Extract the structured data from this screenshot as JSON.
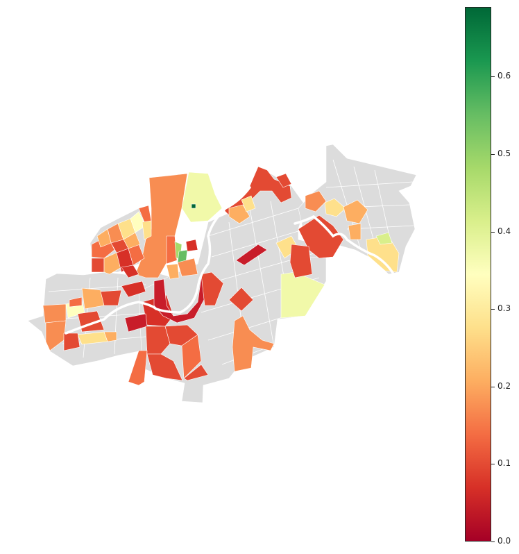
{
  "map": {
    "missing_color": "#dcdcdc",
    "border_color": "#ffffff",
    "river_color": "#ffffff"
  },
  "colorbar": {
    "colormap": "RdYlGn",
    "min": 0.0,
    "max": 0.69,
    "ticks": [
      {
        "value": 0.0,
        "label": "0.0"
      },
      {
        "value": 0.1,
        "label": "0.1"
      },
      {
        "value": 0.2,
        "label": "0.2"
      },
      {
        "value": 0.3,
        "label": "0.3"
      },
      {
        "value": 0.4,
        "label": "0.4"
      },
      {
        "value": 0.5,
        "label": "0.5"
      },
      {
        "value": 0.6,
        "label": "0.6"
      }
    ]
  }
}
